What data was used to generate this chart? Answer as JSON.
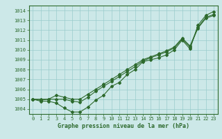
{
  "x": [
    0,
    1,
    2,
    3,
    4,
    5,
    6,
    7,
    8,
    9,
    10,
    11,
    12,
    13,
    14,
    15,
    16,
    17,
    18,
    19,
    20,
    21,
    22,
    23
  ],
  "line1": [
    1005.0,
    1004.8,
    1004.8,
    1004.6,
    1004.1,
    1003.7,
    1003.7,
    1004.2,
    1004.9,
    1005.4,
    1006.3,
    1006.7,
    1007.5,
    1008.0,
    1008.8,
    1009.0,
    1009.2,
    1009.5,
    1010.0,
    1011.0,
    1010.1,
    1012.5,
    1013.5,
    1013.9
  ],
  "line2": [
    1005.0,
    1005.0,
    1005.0,
    1005.0,
    1005.0,
    1004.8,
    1004.7,
    1005.2,
    1005.8,
    1006.3,
    1006.8,
    1007.3,
    1007.8,
    1008.3,
    1008.9,
    1009.2,
    1009.5,
    1009.8,
    1010.2,
    1011.1,
    1010.3,
    1012.2,
    1013.2,
    1013.5
  ],
  "line3": [
    1005.0,
    1004.9,
    1005.0,
    1005.4,
    1005.2,
    1005.0,
    1005.0,
    1005.5,
    1006.0,
    1006.5,
    1007.0,
    1007.5,
    1008.0,
    1008.5,
    1009.0,
    1009.3,
    1009.6,
    1009.9,
    1010.3,
    1011.2,
    1010.4,
    1012.3,
    1013.3,
    1013.6
  ],
  "bg_color": "#cce8e8",
  "grid_color": "#99cccc",
  "line_color": "#2d6a2d",
  "title": "Graphe pression niveau de la mer (hPa)",
  "ylim": [
    1003.5,
    1014.5
  ],
  "yticks": [
    1004,
    1005,
    1006,
    1007,
    1008,
    1009,
    1010,
    1011,
    1012,
    1013,
    1014
  ],
  "xlim": [
    -0.5,
    23.5
  ],
  "tick_fontsize": 5,
  "label_fontsize": 6
}
